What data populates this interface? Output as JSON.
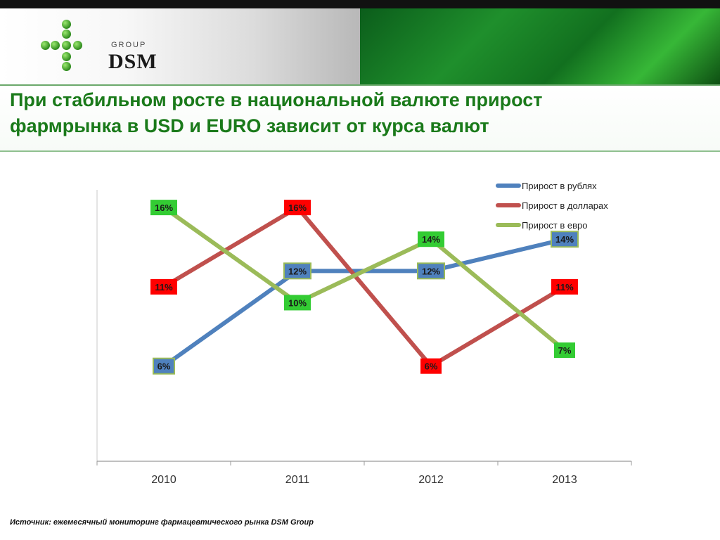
{
  "header": {
    "logo": {
      "group": "GROUP",
      "name": "DSM"
    },
    "title": "При стабильном росте в национальной валюте прирост\nфармрынка  в USD и EURO зависит от курса валют"
  },
  "colors": {
    "rub": "#4f81bd",
    "usd": "#c0504d",
    "eur": "#9bbb59",
    "label_rub_bg": "#4f81bd",
    "label_usd_bg": "#ff0000",
    "label_eur_bg": "#33cc33",
    "title": "#1a7a1a"
  },
  "chart_data": {
    "type": "line",
    "categories": [
      "2010",
      "2011",
      "2012",
      "2013"
    ],
    "ylim": [
      0,
      18
    ],
    "grid": false,
    "legend_position": "top-right",
    "series": [
      {
        "name": "Прирост в рублях",
        "values": [
          6,
          12,
          12,
          14
        ],
        "labels": [
          "6%",
          "12%",
          "12%",
          "14%"
        ]
      },
      {
        "name": "Прирост в долларах",
        "values": [
          11,
          16,
          6,
          11
        ],
        "labels": [
          "11%",
          "16%",
          "6%",
          "11%"
        ]
      },
      {
        "name": "Прирост в евро",
        "values": [
          16,
          10,
          14,
          7
        ],
        "labels": [
          "16%",
          "10%",
          "14%",
          "7%"
        ]
      }
    ]
  },
  "footer": {
    "source": "Источник: ежемесячный мониторинг фармацевтического рынка DSM Group"
  }
}
